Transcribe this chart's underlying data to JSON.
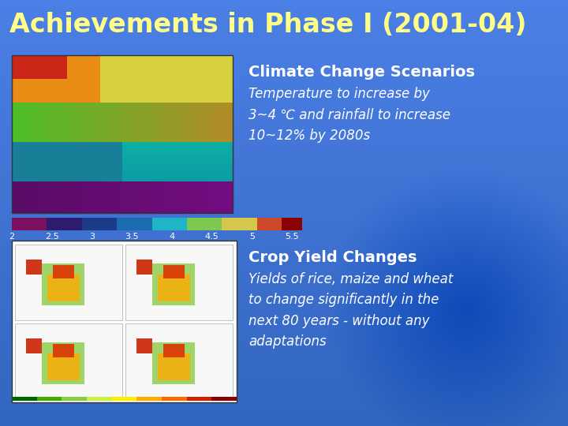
{
  "title": "Achievements in Phase I (2001-04)",
  "title_color": "#FFFF88",
  "title_fontsize": 24,
  "section1_heading": "Climate Change Scenarios",
  "section1_heading_color": "#FFFFFF",
  "section1_heading_fontsize": 14,
  "section1_body": "Temperature to increase by\n3~4 ℃ and rainfall to increase\n10~12% by 2080s",
  "section1_body_color": "#FFFFFF",
  "section1_body_fontsize": 12,
  "section2_heading": "Crop Yield Changes",
  "section2_heading_color": "#FFFFFF",
  "section2_heading_fontsize": 14,
  "section2_body": "Yields of rice, maize and wheat\nto change significantly in the\nnext 80 years - without any\nadaptations",
  "section2_body_color": "#FFFFFF",
  "section2_body_fontsize": 12,
  "colorbar_values": [
    "2",
    "2.5",
    "3",
    "3.5",
    "4",
    "4.5",
    "5",
    "5.5"
  ],
  "colorbar_colors": [
    "#7B1060",
    "#2D1B6E",
    "#1B3A8A",
    "#1A6BAF",
    "#1FB5C7",
    "#7EC850",
    "#D4C84A",
    "#CC4A2A",
    "#8B0000"
  ]
}
